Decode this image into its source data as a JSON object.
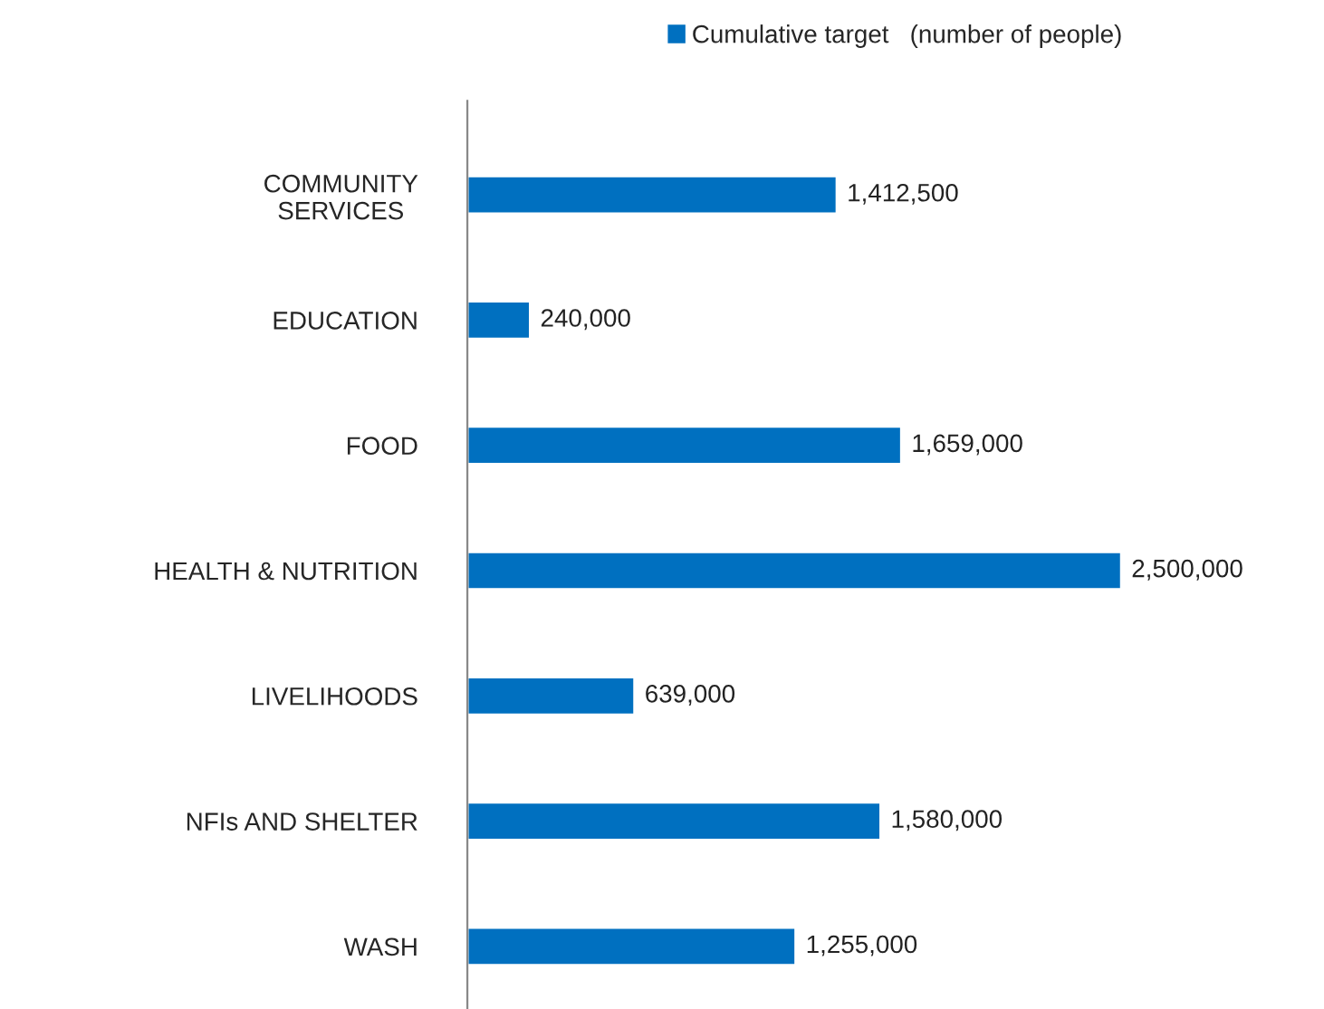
{
  "chart_data": {
    "type": "bar",
    "orientation": "horizontal",
    "categories": [
      "COMMUNITY\nSERVICES",
      "EDUCATION",
      "FOOD",
      "HEALTH & NUTRITION",
      "LIVELIHOODS",
      "NFIs AND SHELTER",
      "WASH"
    ],
    "series": [
      {
        "name": "Cumulative target   (number of people)",
        "color": "#0070c0",
        "values": [
          1412500,
          240000,
          1659000,
          2500000,
          639000,
          1580000,
          1255000
        ],
        "value_labels": [
          "1,412,500",
          "240,000",
          "1,659,000",
          "2,500,000",
          "639,000",
          "1,580,000",
          "1,255,000"
        ]
      }
    ],
    "legend": "top",
    "grid": false,
    "tick_labels": "y"
  }
}
